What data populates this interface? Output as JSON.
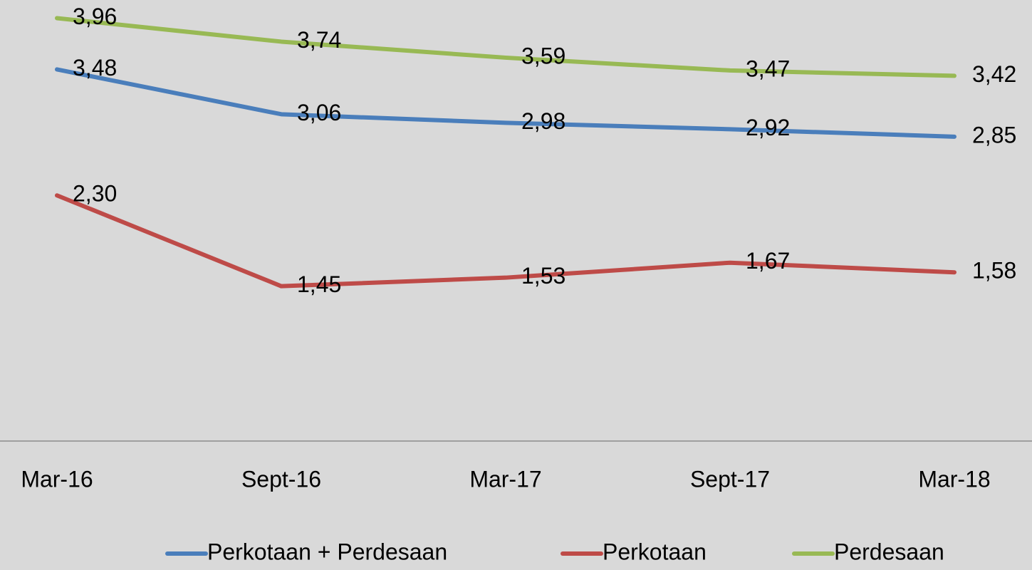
{
  "chart_data": {
    "type": "line",
    "categories": [
      "Mar-16",
      "Sept-16",
      "Mar-17",
      "Sept-17",
      "Mar-18"
    ],
    "series": [
      {
        "name": "Perkotaan + Perdesaan",
        "color": "#4a7ebb",
        "values": [
          3.48,
          3.06,
          2.98,
          2.92,
          2.85
        ],
        "value_labels": [
          "3,48",
          "3,06",
          "2,98",
          "2,92",
          "2,85"
        ]
      },
      {
        "name": "Perkotaan",
        "color": "#be4b48",
        "values": [
          2.3,
          1.45,
          1.53,
          1.67,
          1.58
        ],
        "value_labels": [
          "2,30",
          "1,45",
          "1,53",
          "1,67",
          "1,58"
        ]
      },
      {
        "name": "Perdesaan",
        "color": "#98b954",
        "values": [
          3.96,
          3.74,
          3.59,
          3.47,
          3.42
        ],
        "value_labels": [
          "3,96",
          "3,74",
          "3,59",
          "3,47",
          "3,42"
        ]
      }
    ],
    "ylim": [
      0,
      4.13
    ]
  }
}
